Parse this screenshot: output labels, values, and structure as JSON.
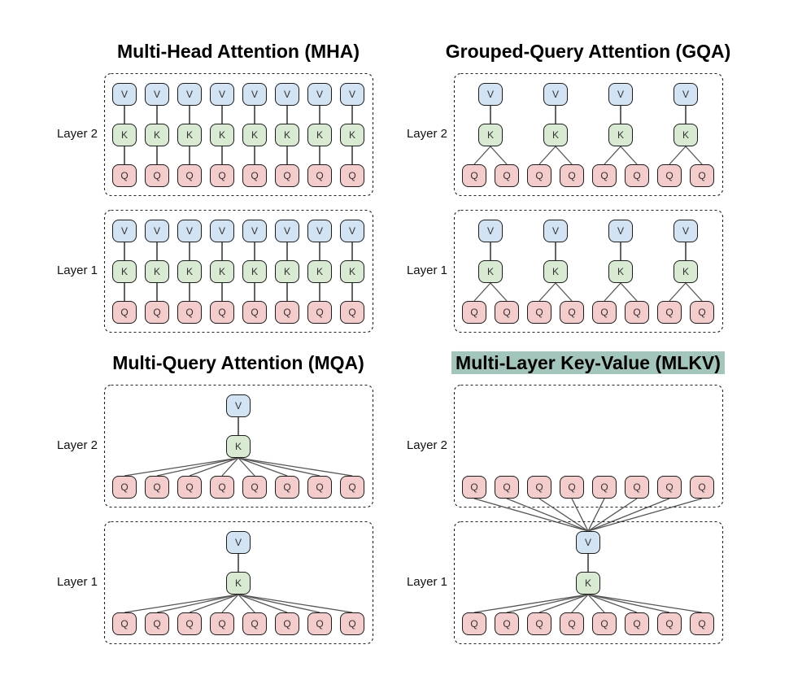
{
  "figure": {
    "background": "#ffffff",
    "cell_labels": {
      "value": "V",
      "key": "K",
      "query": "Q"
    },
    "colors": {
      "value_fill": "#d2e3f3",
      "key_fill": "#d9ead3",
      "query_fill": "#f4cccc",
      "cell_border": "#1c1c1c",
      "straight_connector": "#111111",
      "connector": "#555555",
      "dashed_border": "#222222",
      "title_text": "#000000",
      "label_text": "#111111",
      "mlkv_title_highlight": "#a2c5bc"
    },
    "panels": [
      {
        "key": "mha",
        "title": "Multi-Head Attention (MHA)",
        "highlighted": false,
        "layers": [
          {
            "label": "Layer 2",
            "topology": "per-head-kv",
            "num_queries": 8
          },
          {
            "label": "Layer 1",
            "topology": "per-head-kv",
            "num_queries": 8
          }
        ]
      },
      {
        "key": "gqa",
        "title": "Grouped-Query Attention (GQA)",
        "highlighted": false,
        "layers": [
          {
            "label": "Layer 2",
            "topology": "grouped-kv",
            "num_queries": 8,
            "num_kv_groups": 4
          },
          {
            "label": "Layer 1",
            "topology": "grouped-kv",
            "num_queries": 8,
            "num_kv_groups": 4
          }
        ]
      },
      {
        "key": "mqa",
        "title": "Multi-Query Attention (MQA)",
        "highlighted": false,
        "layers": [
          {
            "label": "Layer 2",
            "topology": "single-kv",
            "num_queries": 8
          },
          {
            "label": "Layer 1",
            "topology": "single-kv",
            "num_queries": 8
          }
        ]
      },
      {
        "key": "mlkv",
        "title": "Multi-Layer Key-Value (MLKV)",
        "highlighted": true,
        "layers": [
          {
            "label": "Layer 2",
            "topology": "queries-only",
            "num_queries": 8
          },
          {
            "label": "Layer 1",
            "topology": "single-kv-shared-across-layers",
            "num_queries": 8
          }
        ]
      }
    ]
  }
}
